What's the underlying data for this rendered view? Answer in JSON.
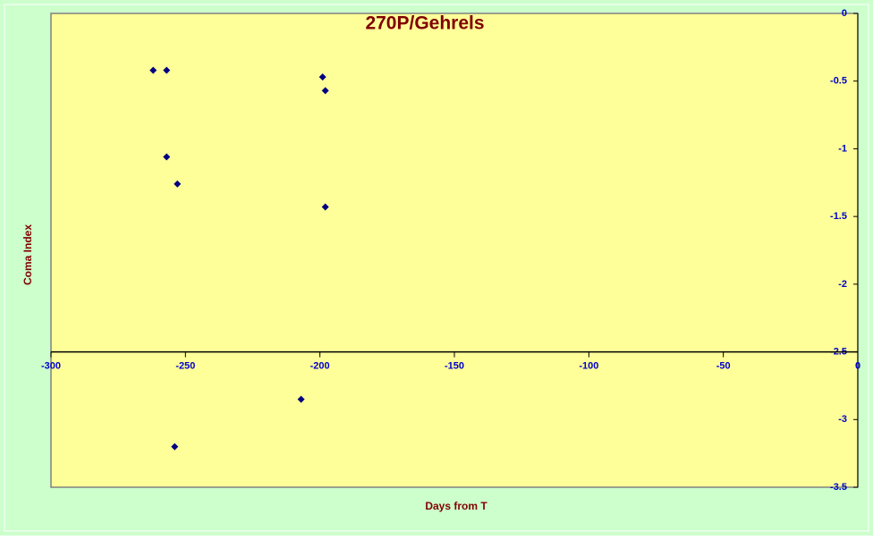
{
  "chart_data": {
    "type": "scatter",
    "title": "270P/Gehrels",
    "x_label": "Days from T",
    "y_label": "Coma Index",
    "x": [
      -262,
      -257,
      -199,
      -198,
      -257,
      -253,
      -198,
      -207,
      -254
    ],
    "values": [
      -0.42,
      -0.42,
      -0.47,
      -0.57,
      -1.06,
      -1.26,
      -1.43,
      -2.85,
      -3.2
    ],
    "color": "#000080",
    "xlim": [
      -300,
      0
    ],
    "xticks": [
      -300,
      -250,
      -200,
      -150,
      -100,
      -50,
      0
    ],
    "ylim": [
      -3.5,
      0
    ],
    "yticks": [
      0,
      -0.5,
      -1,
      -1.5,
      -2,
      -2.5,
      -3,
      -3.5
    ],
    "x_axis_crosses_y": -2.5
  }
}
